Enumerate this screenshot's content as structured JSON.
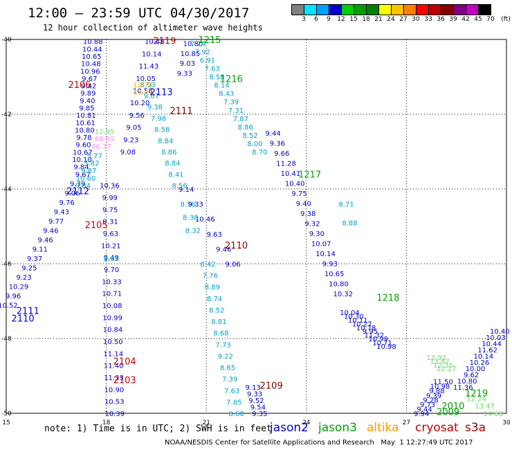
{
  "header": {
    "title": "12:00 – 23:59 UTC 04/30/2017",
    "subtitle": "12 hour collection of altimeter wave heights",
    "colorbar_labels": [
      "3",
      "6",
      "9",
      "12",
      "15",
      "18",
      "21",
      "24",
      "27",
      "30",
      "33",
      "36",
      "39",
      "42",
      "45",
      "70",
      "(ft)"
    ],
    "colorbar_colors": [
      "#7f7f7f",
      "#00e5ff",
      "#00a0ff",
      "#0000c8",
      "#00d000",
      "#00a000",
      "#008000",
      "#ffff00",
      "#ffc000",
      "#ff8000",
      "#ff0000",
      "#c00000",
      "#800000",
      "#800080",
      "#c000c0",
      "#000000"
    ]
  },
  "footer": {
    "note": "note: 1) Time is in UTC; 2) SWH is in feet",
    "credit": "NOAA/NESDIS Center for Satellite Applications and Research   May  1 12:27:49 UTC 2017",
    "satellites": [
      {
        "name": "jason2",
        "color": "#0000c8"
      },
      {
        "name": "jason3",
        "color": "#00a000"
      },
      {
        "name": "altika",
        "color": "#ff9900"
      },
      {
        "name": "cryosat",
        "color": "#c00000"
      },
      {
        "name": "s3a",
        "color": "#a00000"
      }
    ]
  },
  "chart_data": {
    "type": "scatter",
    "title": "12 hour collection of altimeter wave heights",
    "xlim": [
      15,
      30
    ],
    "ylim": [
      -50,
      -40
    ],
    "x_ticks": [
      15,
      18,
      21,
      24,
      27,
      30
    ],
    "y_ticks": [
      -40,
      -42,
      -44,
      -46,
      -48,
      -50
    ],
    "x_tick_labels": [
      "15",
      "18",
      "21",
      "24",
      "27",
      "30"
    ],
    "y_tick_labels": [
      "-40",
      "-42",
      "-44",
      "-46",
      "-48",
      "-50"
    ],
    "grid": true,
    "tracks": [
      {
        "sat": "jason2",
        "color": "#0000c8",
        "x0": 17.6,
        "y0": -40.05,
        "x1": 17.25,
        "y1": -43.4,
        "values": [
          "10.88",
          "10.44",
          "10.65",
          "10.48",
          "10.96",
          "9.67",
          "9.42",
          "9.89",
          "9.40",
          "9.85",
          "10.81",
          "10.61",
          "10.80",
          "9.78",
          "9.60",
          "10.67",
          "10.10",
          "9.84"
        ]
      },
      {
        "sat": "jason2",
        "color": "#0000c8",
        "x0": 17.3,
        "y0": -43.6,
        "x1": 15.05,
        "y1": -47.1,
        "values": [
          "9.67",
          "9.39",
          "9.06",
          "9.76",
          "9.43",
          "9.77",
          "9.46",
          "9.46",
          "9.11",
          "9.37",
          "9.25",
          "9.23",
          "10.29",
          "9.96",
          "10.52"
        ]
      },
      {
        "sat": "jason2",
        "color": "#0000c8",
        "x0": 19.45,
        "y0": -40.05,
        "x1": 18.65,
        "y1": -43.0,
        "values": [
          "10.48",
          "10.14",
          "11.43",
          "10.05",
          "10.58",
          "10.20",
          "9.56",
          "9.05",
          "9.23",
          "9.08"
        ]
      },
      {
        "sat": "jason2",
        "color": "#0000c8",
        "x0": 18.1,
        "y0": -43.9,
        "x1": 18.25,
        "y1": -50.0,
        "values": [
          "10.36",
          "9.99",
          "9.75",
          "9.31",
          "9.63",
          "10.21",
          "9.49",
          "9.70",
          "10.33",
          "10.71",
          "10.08",
          "10.99",
          "10.84",
          "10.50",
          "11.14",
          "11.40",
          "11.33",
          "10.90",
          "10.53",
          "10.39"
        ]
      },
      {
        "sat": "jason2",
        "color": "#0000c8",
        "x0": 20.6,
        "y0": -40.1,
        "x1": 20.35,
        "y1": -40.9,
        "values": [
          "10.80",
          "10.85",
          "9.03",
          "9.33"
        ]
      },
      {
        "sat": "jason2",
        "color": "#0000c8",
        "x0": 20.4,
        "y0": -44.0,
        "x1": 21.8,
        "y1": -46.0,
        "values": [
          "9.14",
          "9.33",
          "10.46",
          "9.63",
          "9.46",
          "9.06"
        ]
      },
      {
        "sat": "jason2",
        "color": "#0000c8",
        "x0": 23.0,
        "y0": -42.5,
        "x1": 25.1,
        "y1": -46.8,
        "values": [
          "9.44",
          "9.36",
          "9.66",
          "11.28",
          "10.41",
          "10.40",
          "9.75",
          "9.40",
          "9.38",
          "9.32",
          "9.30",
          "10.07",
          "10.14",
          "9.93",
          "10.65",
          "10.80",
          "10.32"
        ]
      },
      {
        "sat": "jason2",
        "color": "#0000c8",
        "x0": 25.3,
        "y0": -47.3,
        "x1": 26.4,
        "y1": -48.2,
        "values": [
          "10.04",
          "10.30",
          "10.11",
          "10.27",
          "10.78",
          "9.95",
          "11.32",
          "10.99",
          "10.71",
          "10.98"
        ]
      },
      {
        "sat": "jason2",
        "color": "#0000c8",
        "x0": 22.4,
        "y0": -49.3,
        "x1": 22.6,
        "y1": -50.0,
        "values": [
          "9.13",
          "9.33",
          "9.52",
          "9.54",
          "9.35"
        ]
      },
      {
        "sat": "jason2",
        "color": "#0000c8",
        "x0": 28.1,
        "y0": -49.15,
        "x1": 27.45,
        "y1": -50.0,
        "values": [
          "11.50",
          "10.98",
          "9.88",
          "9.39",
          "9.28",
          "9.73",
          "9.44",
          "9.94"
        ]
      },
      {
        "sat": "jason2",
        "color": "#0000c8",
        "x0": 29.8,
        "y0": -47.8,
        "x1": 28.7,
        "y1": -49.3,
        "values": [
          "10.40",
          "10.03",
          "10.44",
          "11.62",
          "10.14",
          "10.26",
          "10.00",
          "9.62",
          "10.80",
          "11.36"
        ]
      },
      {
        "sat": "jason3",
        "color": "#00a0c8",
        "x0": 20.75,
        "y0": -40.1,
        "x1": 22.6,
        "y1": -43.0,
        "values": [
          "7.24",
          "7.92",
          "6.91",
          "7.63",
          "8.58",
          "8.14",
          "8.43",
          "7.39",
          "7.31",
          "7.87",
          "8.86",
          "8.52",
          "8.00",
          "8.70"
        ]
      },
      {
        "sat": "jason3",
        "color": "#00a0c8",
        "x0": 19.25,
        "y0": -41.2,
        "x1": 20.2,
        "y1": -43.9,
        "values": [
          "8.93",
          "9.07",
          "9.38",
          "7.98",
          "8.58",
          "8.84",
          "8.86",
          "8.84",
          "8.41",
          "8.56"
        ]
      },
      {
        "sat": "jason3",
        "color": "#00a0c8",
        "x0": 17.65,
        "y0": -43.1,
        "x1": 17.3,
        "y1": -43.9,
        "values": [
          "5.77",
          "5.82",
          "9.87",
          "10.60",
          "9.84"
        ]
      },
      {
        "sat": "jason3",
        "color": "#00a0c8",
        "x0": 20.45,
        "y0": -44.4,
        "x1": 20.6,
        "y1": -45.1,
        "values": [
          "8.76",
          "8.38",
          "8.32"
        ]
      },
      {
        "sat": "jason3",
        "color": "#00a0c8",
        "x0": 21.05,
        "y0": -46.0,
        "x1": 21.9,
        "y1": -50.0,
        "values": [
          "8.42",
          "7.76",
          "8.89",
          "8.74",
          "8.52",
          "8.81",
          "8.68",
          "7.73",
          "9.22",
          "8.65",
          "7.39",
          "7.63",
          "7.85",
          "8.60"
        ]
      },
      {
        "sat": "jason3",
        "color": "#00a0c8",
        "x0": 25.2,
        "y0": -44.4,
        "x1": 25.3,
        "y1": -44.9,
        "values": [
          "8.71",
          "8.88"
        ]
      },
      {
        "sat": "jason3",
        "color": "#00a0c8",
        "x0": 18.15,
        "y0": -45.85,
        "x1": 18.15,
        "y1": -45.85,
        "values": [
          "8.63"
        ]
      },
      {
        "sat": "jason3",
        "color": "#66dd66",
        "x0": 27.9,
        "y0": -48.5,
        "x1": 28.2,
        "y1": -48.8,
        "values": [
          "12.92",
          "13.87",
          "12.35",
          "12.17"
        ]
      },
      {
        "sat": "jason3",
        "color": "#66dd66",
        "x0": 29.1,
        "y0": -49.6,
        "x1": 29.6,
        "y1": -50.0,
        "values": [
          "12.24",
          "13.47",
          "14.68"
        ]
      },
      {
        "sat": "altika",
        "color": "#ffb000",
        "x0": 19.1,
        "y0": -41.2,
        "x1": 19.1,
        "y1": -41.4,
        "values": [
          "12.73",
          "13.47"
        ]
      },
      {
        "sat": "altika",
        "color": "#ff8ce0",
        "x0": 17.95,
        "y0": -42.65,
        "x1": 17.85,
        "y1": -42.85,
        "values": [
          "66.69",
          "46.37"
        ]
      },
      {
        "sat": "jason3",
        "color": "#66dd66",
        "x0": 17.95,
        "y0": -42.45,
        "x1": 17.95,
        "y1": -42.45,
        "values": [
          "12.95"
        ]
      }
    ],
    "track_labels": [
      {
        "text": "2119",
        "color": "#c00000",
        "x": 19.75,
        "y": -40.03
      },
      {
        "text": "1215",
        "color": "#00a000",
        "x": 21.1,
        "y": -40.0
      },
      {
        "text": "2106",
        "color": "#c00000",
        "x": 17.2,
        "y": -41.2
      },
      {
        "text": "1216",
        "color": "#00a000",
        "x": 21.75,
        "y": -41.05
      },
      {
        "text": "2113",
        "color": "#0000c8",
        "x": 19.65,
        "y": -41.4
      },
      {
        "text": "2111",
        "color": "#800000",
        "x": 20.25,
        "y": -41.9
      },
      {
        "text": "1217",
        "color": "#00a000",
        "x": 24.1,
        "y": -43.6
      },
      {
        "text": "2112",
        "color": "#0000c8",
        "x": 17.15,
        "y": -44.05
      },
      {
        "text": "2105",
        "color": "#c00000",
        "x": 17.7,
        "y": -44.95
      },
      {
        "text": "2110",
        "color": "#800000",
        "x": 21.9,
        "y": -45.5
      },
      {
        "text": "1218",
        "color": "#00a000",
        "x": 26.45,
        "y": -46.9
      },
      {
        "text": "2111",
        "color": "#0000c8",
        "x": 15.65,
        "y": -47.25
      },
      {
        "text": "2110",
        "color": "#0000c8",
        "x": 15.5,
        "y": -47.45
      },
      {
        "text": "2104",
        "color": "#c00000",
        "x": 18.55,
        "y": -48.6
      },
      {
        "text": "2109",
        "color": "#800000",
        "x": 22.95,
        "y": -49.25
      },
      {
        "text": "2103",
        "color": "#c00000",
        "x": 18.55,
        "y": -49.1
      },
      {
        "text": "1219",
        "color": "#00a000",
        "x": 29.1,
        "y": -49.45
      },
      {
        "text": "2010",
        "color": "#00a000",
        "x": 28.4,
        "y": -49.8
      },
      {
        "text": "2009",
        "color": "#00a000",
        "x": 28.25,
        "y": -49.95
      }
    ]
  }
}
